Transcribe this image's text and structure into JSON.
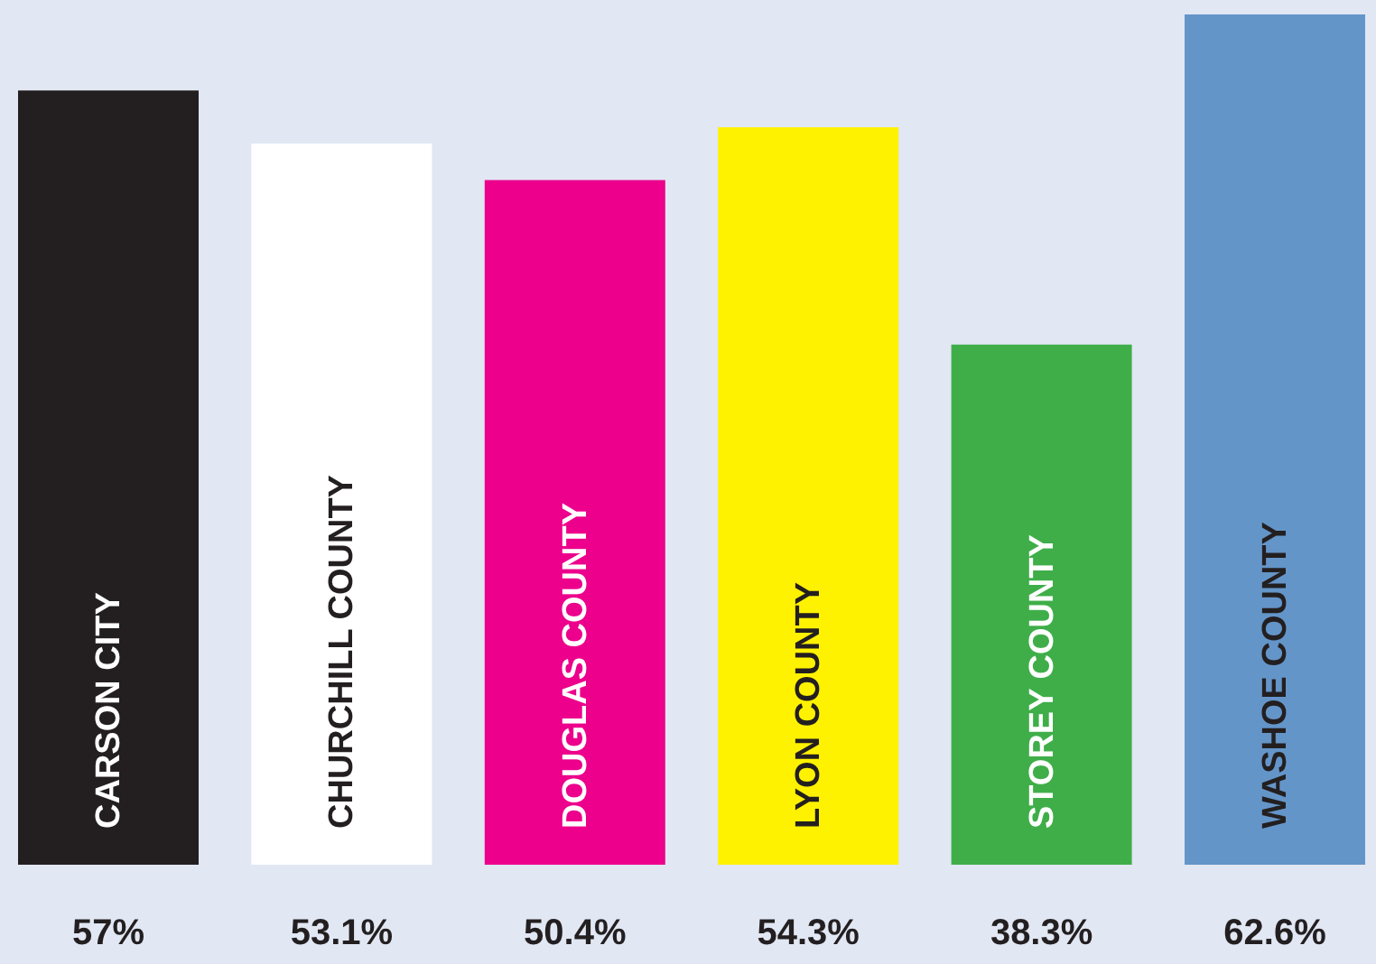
{
  "chart_data": {
    "type": "bar",
    "categories": [
      "CARSON CITY",
      "CHURCHILL COUNTY",
      "DOUGLAS COUNTY",
      "LYON COUNTY",
      "STOREY COUNTY",
      "WASHOE COUNTY"
    ],
    "values": [
      57,
      53.1,
      50.4,
      54.3,
      38.3,
      62.6
    ],
    "colors": [
      "#231f20",
      "#ffffff",
      "#ec008c",
      "#fff200",
      "#3fae49",
      "#6495c9"
    ],
    "value_labels": [
      "57%",
      "53.1%",
      "50.4%",
      "54.3%",
      "38.3%",
      "62.6%"
    ]
  }
}
